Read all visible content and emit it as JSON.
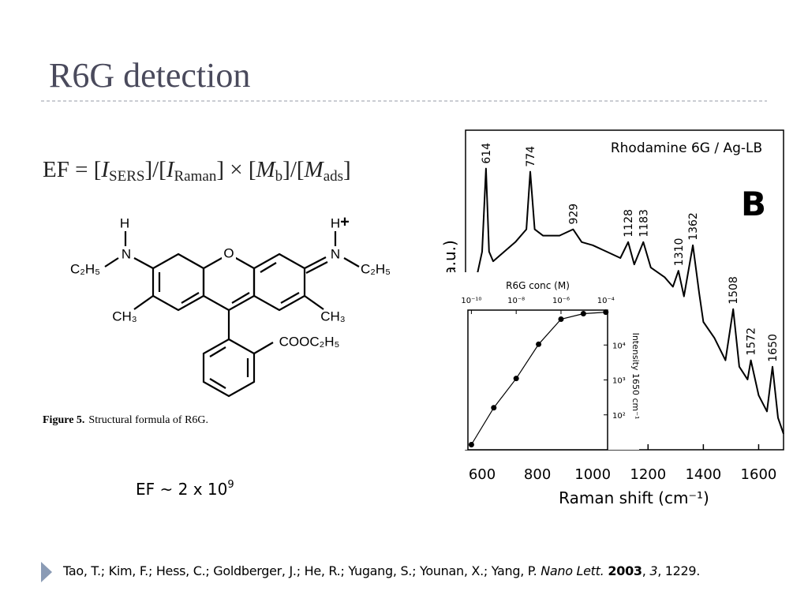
{
  "title": "R6G detection",
  "formula": [
    "EF = [",
    "I",
    "SERS",
    "]/[",
    "I",
    "Raman",
    "] × [",
    "M",
    "b",
    "]/[",
    "M",
    "ads",
    "]"
  ],
  "molecule": {
    "labels": [
      "H",
      "N",
      "C₂H₅",
      "CH₃",
      "O",
      "H",
      "N",
      "+",
      "C₂H₅",
      "CH₃",
      "COOC₂H₅"
    ]
  },
  "caption": [
    "Figure 5.",
    "Structural formula of R6G."
  ],
  "ef_value": [
    "EF ~ 2 x 10",
    "9"
  ],
  "citation": [
    "Tao, T.; Kim, F.; Hess, C.; Goldberger, J.; He, R.; Yugang, S.; Younan, X.; Yang, P. ",
    "Nano Lett.",
    "2003",
    ", ",
    "3",
    ", 1229."
  ],
  "chart_data": [
    {
      "type": "line",
      "title": "Rhodamine 6G / Ag-LB",
      "panel_label": "B",
      "xlabel": "Raman shift (cm⁻¹)",
      "ylabel": "Intensity (a.u.)",
      "x": [
        550,
        580,
        600,
        614,
        625,
        640,
        680,
        720,
        760,
        774,
        790,
        820,
        880,
        929,
        960,
        1000,
        1050,
        1100,
        1128,
        1150,
        1183,
        1210,
        1260,
        1290,
        1310,
        1330,
        1362,
        1385,
        1400,
        1440,
        1480,
        1508,
        1530,
        1560,
        1572,
        1600,
        1630,
        1650,
        1670,
        1690
      ],
      "values": [
        50,
        54,
        62,
        88,
        62,
        59,
        62,
        65,
        69,
        87,
        69,
        67,
        67,
        69,
        65,
        64,
        62,
        60,
        65,
        58,
        65,
        57,
        54,
        51,
        56,
        48,
        64,
        49,
        40,
        35,
        28,
        44,
        26,
        22,
        28,
        17,
        12,
        26,
        10,
        5
      ],
      "color": "#000000",
      "xlim": [
        540,
        1690
      ],
      "ylim": [
        0,
        100
      ],
      "xticks": [
        600,
        800,
        1000,
        1200,
        1400,
        1600
      ],
      "peaks": {
        "x": [
          614,
          774,
          929,
          1128,
          1183,
          1310,
          1362,
          1508,
          1572,
          1650
        ],
        "y": [
          88,
          87,
          69,
          65,
          65,
          56,
          64,
          44,
          28,
          26
        ]
      }
    },
    {
      "type": "scatter",
      "title": "R6G conc (M)",
      "ylabel": "Intensity 1650 cm⁻¹",
      "x": [
        1e-10,
        1e-09,
        1e-08,
        1e-07,
        1e-06,
        1e-05,
        0.0001
      ],
      "values": [
        14,
        160,
        1100,
        10500,
        55000,
        79000,
        87000
      ],
      "color": "#000000",
      "xscale": "log",
      "yscale": "log",
      "xlim": [
        7e-11,
        0.00012
      ],
      "ylim": [
        10,
        100000
      ],
      "xticks": [
        {
          "value": 1e-10,
          "label": "10⁻¹⁰"
        },
        {
          "value": 1e-08,
          "label": "10⁻⁸"
        },
        {
          "value": 1e-06,
          "label": "10⁻⁶"
        },
        {
          "value": 0.0001,
          "label": "10⁻⁴"
        }
      ],
      "yticks": [
        {
          "value": 100,
          "label": "10²"
        },
        {
          "value": 1000,
          "label": "10³"
        },
        {
          "value": 10000,
          "label": "10⁴"
        }
      ],
      "fit_line": true
    }
  ]
}
